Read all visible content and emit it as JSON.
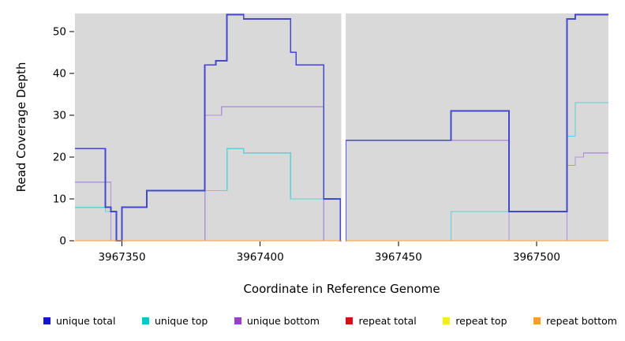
{
  "y_axis": {
    "label": "Read Coverage Depth",
    "ticks": [
      0,
      10,
      20,
      30,
      40,
      50
    ]
  },
  "x_axis": {
    "label": "Coordinate in Reference Genome",
    "ticks": [
      3967350,
      3967400,
      3967450,
      3967500
    ]
  },
  "chart_data": {
    "type": "line",
    "step": "hv",
    "title": "",
    "xlabel": "Coordinate in Reference Genome",
    "ylabel": "Read Coverage Depth",
    "x_range": [
      3967333,
      3967526
    ],
    "y_range": [
      0,
      54.3
    ],
    "x_ticks": [
      3967350,
      3967400,
      3967450,
      3967500
    ],
    "y_ticks": [
      0,
      10,
      20,
      30,
      40,
      50
    ],
    "panel_bg": "#d9d9d9",
    "grid": false,
    "gap_x": [
      3967429.35,
      3967430.95
    ],
    "series": [
      {
        "name": "repeat total",
        "color": "#cc1414",
        "width": 1.3,
        "points": [
          [
            3967333,
            0
          ]
        ]
      },
      {
        "name": "repeat top",
        "color": "#f2ee1d",
        "width": 1.3,
        "points": [
          [
            3967333,
            0
          ]
        ]
      },
      {
        "name": "unique bottom",
        "color": "#b193dd",
        "width": 1.3,
        "points": [
          [
            3967333,
            14
          ],
          [
            3967346,
            0
          ],
          [
            3967380,
            30
          ],
          [
            3967386,
            32
          ],
          [
            3967423,
            0
          ],
          [
            3967431,
            24
          ],
          [
            3967490,
            0
          ],
          [
            3967511,
            18
          ],
          [
            3967514,
            20
          ],
          [
            3967517,
            21
          ]
        ]
      },
      {
        "name": "unique top",
        "color": "#5ad2d8",
        "width": 1.3,
        "points": [
          [
            3967333,
            8
          ],
          [
            3967344,
            7
          ],
          [
            3967348,
            0
          ],
          [
            3967350,
            8
          ],
          [
            3967359,
            12
          ],
          [
            3967388,
            22
          ],
          [
            3967394,
            21
          ],
          [
            3967411,
            10
          ],
          [
            3967429,
            0
          ],
          [
            3967469,
            7
          ],
          [
            3967511,
            25
          ],
          [
            3967514,
            33
          ]
        ]
      },
      {
        "name": "unique total",
        "color": "#4348cf",
        "width": 1.8,
        "points": [
          [
            3967333,
            22
          ],
          [
            3967344,
            8
          ],
          [
            3967346,
            7
          ],
          [
            3967348,
            0
          ],
          [
            3967350,
            8
          ],
          [
            3967359,
            12
          ],
          [
            3967380,
            42
          ],
          [
            3967384,
            43
          ],
          [
            3967388,
            54
          ],
          [
            3967394,
            53
          ],
          [
            3967411,
            45
          ],
          [
            3967413,
            42
          ],
          [
            3967423,
            10
          ],
          [
            3967429,
            0
          ],
          [
            3967431,
            24
          ],
          [
            3967469,
            31
          ],
          [
            3967490,
            7
          ],
          [
            3967511,
            53
          ],
          [
            3967514,
            54
          ]
        ]
      },
      {
        "name": "repeat bottom",
        "color": "#ff9d26",
        "width": 1.3,
        "points": [
          [
            3967333,
            0
          ]
        ]
      }
    ]
  },
  "legend": {
    "items": [
      {
        "label": "unique total",
        "color": "#1515cc"
      },
      {
        "label": "unique top",
        "color": "#00c9c9"
      },
      {
        "label": "unique bottom",
        "color": "#9a3fcc"
      },
      {
        "label": "repeat total",
        "color": "#cc1414"
      },
      {
        "label": "repeat top",
        "color": "#f2ee1d"
      },
      {
        "label": "repeat bottom",
        "color": "#ff9d26"
      }
    ]
  }
}
